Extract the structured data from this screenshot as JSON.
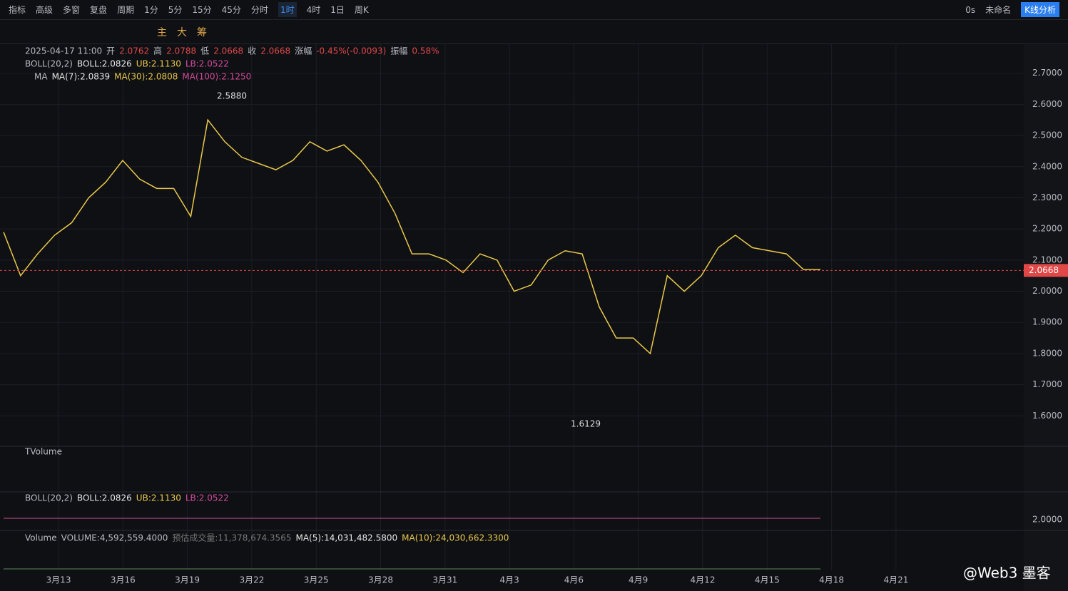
{
  "toolbar": {
    "left": [
      "指标",
      "高级",
      "多窗",
      "复盘"
    ],
    "period": "周期",
    "intervals": [
      "1分",
      "5分",
      "15分",
      "45分",
      "分时",
      "1时",
      "4时",
      "1日",
      "周K"
    ],
    "active_interval": 5,
    "right": [
      "0s",
      "未命名",
      "K线分析"
    ]
  },
  "drawing_toolbar": {
    "labels": [
      "主",
      "大",
      "筹"
    ]
  },
  "info_bar": {
    "date": "2025-04-17 11:00",
    "items": [
      [
        "开",
        "2.0762"
      ],
      [
        "高",
        "2.0788"
      ],
      [
        "低",
        "2.0668"
      ],
      [
        "收",
        "2.0668"
      ],
      [
        "涨幅",
        "-0.45%(-0.0093)"
      ],
      [
        "振幅",
        "0.58%"
      ]
    ]
  },
  "boll_legend": {
    "name": "BOLL(20,2)",
    "boll": "BOLL:2.0826",
    "ub": "UB:2.1130",
    "lb": "LB:2.0522"
  },
  "ma_legend": {
    "name": "MA",
    "ma7": "MA(7):2.0839",
    "ma30": "MA(30):2.0808",
    "ma100": "MA(100):2.1250"
  },
  "price_chart": {
    "ylim": [
      1.555,
      2.745
    ],
    "yticks": [
      {
        "value": 2.7,
        "label": "2.7000"
      },
      {
        "value": 2.6,
        "label": "2.6000"
      },
      {
        "value": 2.5,
        "label": "2.5000"
      },
      {
        "value": 2.4,
        "label": "2.4000"
      },
      {
        "value": 2.3,
        "label": "2.3000"
      },
      {
        "value": 2.2,
        "label": "2.2000"
      },
      {
        "value": 2.1,
        "label": "2.1000"
      },
      {
        "value": 2.0,
        "label": "2.0000"
      },
      {
        "value": 1.9,
        "label": "1.9000"
      },
      {
        "value": 1.8,
        "label": "1.8000"
      },
      {
        "value": 1.7,
        "label": "1.7000"
      },
      {
        "value": 1.6,
        "label": "1.6000"
      }
    ],
    "closes": [
      2.19,
      2.05,
      2.12,
      2.18,
      2.22,
      2.3,
      2.35,
      2.42,
      2.36,
      2.33,
      2.33,
      2.24,
      2.55,
      2.48,
      2.43,
      2.41,
      2.39,
      2.42,
      2.48,
      2.45,
      2.47,
      2.42,
      2.35,
      2.25,
      2.12,
      2.12,
      2.1,
      2.06,
      2.12,
      2.1,
      2.0,
      2.02,
      2.1,
      2.13,
      2.12,
      1.95,
      1.85,
      1.85,
      1.8,
      2.05,
      2.0,
      2.05,
      2.14,
      2.18,
      2.14,
      2.13,
      2.12,
      2.07,
      2.07
    ],
    "last_price": 2.0668,
    "high_label": "2.5880",
    "low_label": "1.6129",
    "color": "#e8c84a"
  },
  "tvolume_pane": {
    "name": "TVolume"
  },
  "boll_pane": {
    "name": "BOLL(20,2)",
    "boll": "BOLL:2.0826",
    "ub": "UB:2.1130",
    "lb": "LB:2.0522",
    "tick": "2.0000"
  },
  "volume_pane": {
    "name": "Volume",
    "volume": "VOLUME:4,592,559.4000",
    "estimate": "预估成交量:11,378,674.3565",
    "ma5": "MA(5):14,031,482.5800",
    "ma10": "MA(10):24,030,662.3300"
  },
  "x_labels": [
    "3月13",
    "3月16",
    "3月19",
    "3月22",
    "3月25",
    "3月28",
    "3月31",
    "4月3",
    "4月6",
    "4月9",
    "4月12",
    "4月15",
    "4月18",
    "4月21"
  ],
  "watermark": "@Web3 墨客"
}
